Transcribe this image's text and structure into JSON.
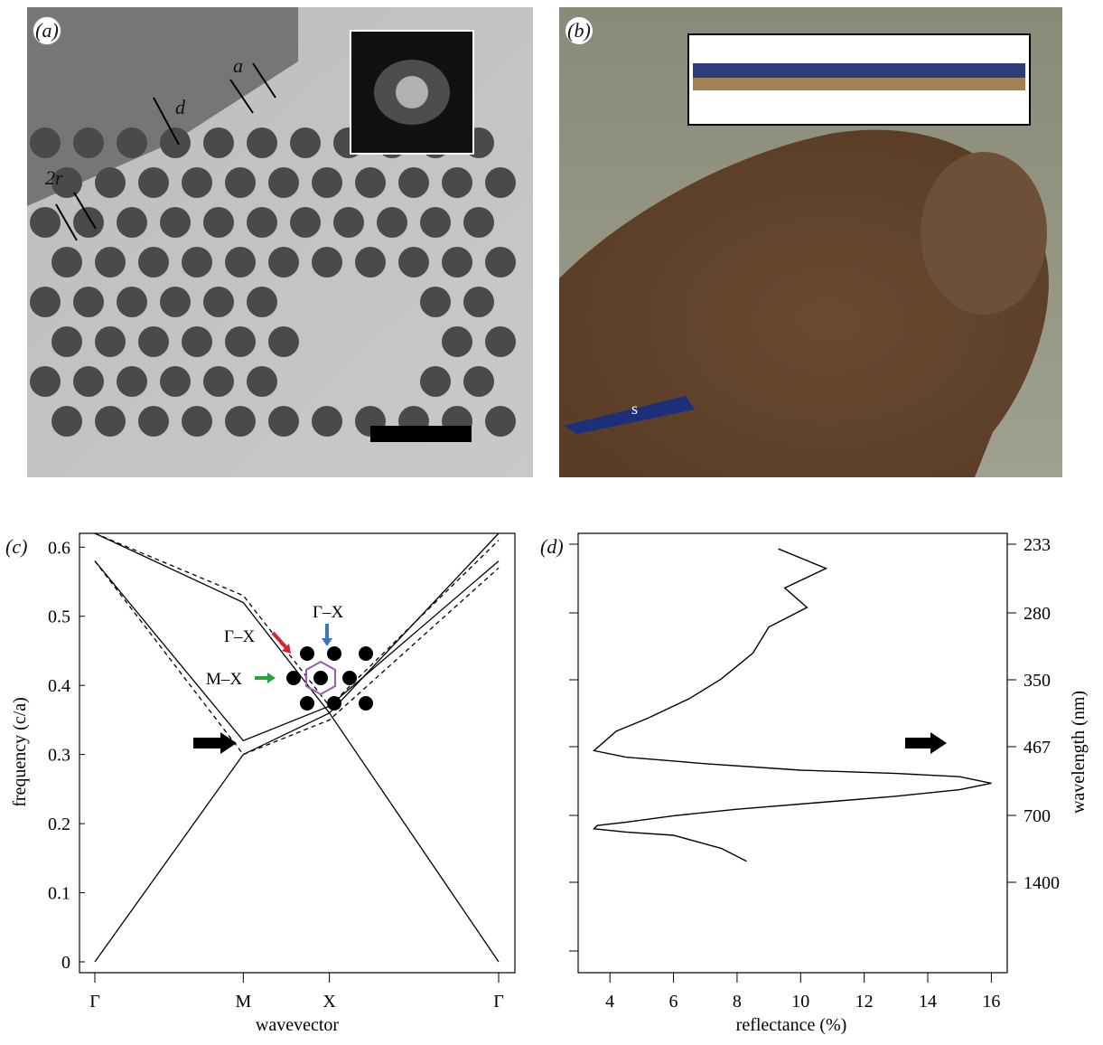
{
  "panel_a": {
    "label": "(a)",
    "annotations": {
      "a": "a",
      "d": "d",
      "two_r": "2r"
    }
  },
  "panel_b": {
    "label": "(b)",
    "speculum_label": "s"
  },
  "panel_c": {
    "label": "(c)",
    "inset_labels": {
      "gx_left": "Γ–X",
      "gx_top": "Γ–X",
      "mx": "M–X"
    },
    "arrow_colors": {
      "red": "#d7262a",
      "blue": "#3a78b5",
      "green": "#2aa13a"
    },
    "hexagon_color": "#9b59b6"
  },
  "panel_d": {
    "label": "(d)"
  },
  "chart_data": [
    {
      "type": "line",
      "panel": "c",
      "xlabel": "wavevector",
      "ylabel": "frequency (c/a)",
      "x_ticks": [
        "Γ",
        "M",
        "X",
        "Γ"
      ],
      "y_ticks": [
        "0",
        "0.1",
        "0.2",
        "0.3",
        "0.4",
        "0.5",
        "0.6"
      ],
      "ylim": [
        0,
        0.62
      ],
      "series": [
        {
          "style": "solid",
          "x": [
            0,
            1.0,
            1.58,
            2.72
          ],
          "y": [
            0.0,
            0.3,
            0.36,
            0.0
          ]
        },
        {
          "style": "solid",
          "x": [
            0,
            1.0,
            1.58,
            2.72
          ],
          "y": [
            0.58,
            0.32,
            0.37,
            0.58
          ]
        },
        {
          "style": "solid",
          "x": [
            0,
            1.0,
            1.58,
            2.72
          ],
          "y": [
            0.62,
            0.52,
            0.36,
            0.62
          ]
        },
        {
          "style": "dashed",
          "x": [
            0,
            1.0,
            1.58,
            2.72
          ],
          "y": [
            0.58,
            0.3,
            0.35,
            0.57
          ]
        },
        {
          "style": "dashed",
          "x": [
            0,
            1.0,
            1.58,
            2.72
          ],
          "y": [
            0.62,
            0.53,
            0.37,
            0.61
          ]
        }
      ]
    },
    {
      "type": "line",
      "panel": "d",
      "xlabel": "reflectance (%)",
      "ylabel": "wavelength (nm)",
      "x_ticks": [
        "4",
        "6",
        "8",
        "10",
        "12",
        "14",
        "16"
      ],
      "xlim": [
        3,
        16.5
      ],
      "y_ticks_right": [
        "233",
        "280",
        "350",
        "467",
        "700",
        "1400"
      ],
      "peak_wavelength": 467,
      "series": [
        {
          "x": [
            9.3,
            10.8,
            9.5,
            10.2,
            9.0,
            8.5,
            7.5,
            6.5,
            5.2,
            4.2,
            3.5,
            4.5,
            7.0,
            10.0,
            13.0,
            15.0,
            16.0,
            15.0,
            13.0,
            10.5,
            8.0,
            6.0,
            4.5,
            3.6,
            3.5,
            4.5,
            6.0,
            7.5,
            8.3
          ],
          "y": [
            0.64,
            0.61,
            0.58,
            0.55,
            0.52,
            0.48,
            0.44,
            0.41,
            0.38,
            0.36,
            0.33,
            0.32,
            0.31,
            0.3,
            0.295,
            0.29,
            0.28,
            0.27,
            0.26,
            0.25,
            0.24,
            0.23,
            0.22,
            0.215,
            0.21,
            0.205,
            0.2,
            0.18,
            0.16
          ]
        }
      ]
    }
  ]
}
